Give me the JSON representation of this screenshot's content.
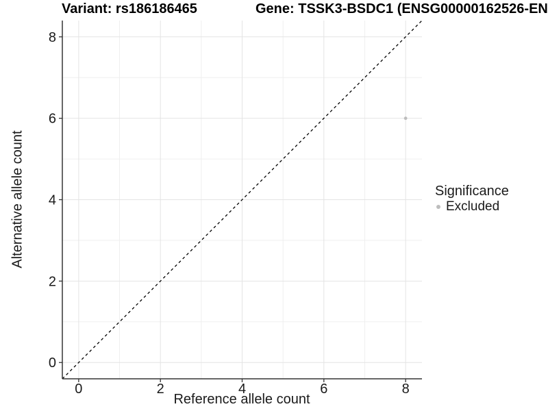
{
  "header": {
    "variant_title": "Variant: rs186186465",
    "gene_title": "Gene: TSSK3-BSDC1 (ENSG00000162526-EN"
  },
  "chart_data": {
    "type": "scatter",
    "titles": [
      "Variant: rs186186465",
      "Gene: TSSK3-BSDC1 (ENSG00000162526-EN"
    ],
    "xlabel": "Reference allele count",
    "ylabel": "Alternative allele count",
    "xlim": [
      -0.4,
      8.4
    ],
    "ylim": [
      -0.4,
      8.4
    ],
    "x_ticks": [
      0,
      2,
      4,
      6,
      8
    ],
    "y_ticks": [
      0,
      2,
      4,
      6,
      8
    ],
    "x_minor_ticks": [
      1,
      3,
      5,
      7
    ],
    "y_minor_ticks": [
      1,
      3,
      5,
      7
    ],
    "grid": "major and minor gridlines on, white background",
    "identity_line": {
      "equation": "y = x",
      "style": "dashed",
      "color": "#000000"
    },
    "series": [
      {
        "name": "Excluded",
        "color": "#bdbdbd",
        "points": [
          {
            "x": 8,
            "y": 6
          }
        ]
      }
    ],
    "legend": {
      "title": "Significance",
      "position": "right",
      "items": [
        {
          "label": "Excluded",
          "color": "#bdbdbd"
        }
      ]
    }
  },
  "colors": {
    "background": "#ffffff",
    "grid_major": "#e4e4e4",
    "grid_minor": "#efefef",
    "axis_line": "#333333",
    "tick": "#333333",
    "text": "#1a1a1a",
    "point": "#bdbdbd"
  }
}
